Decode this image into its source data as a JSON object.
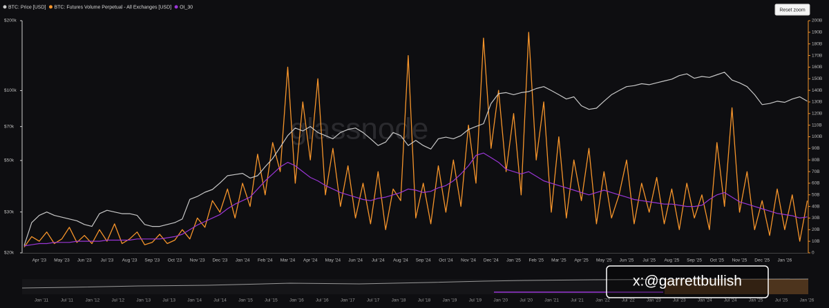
{
  "chart_data": {
    "type": "line",
    "log_y": true,
    "legend": "top-left",
    "watermark": "glassnode",
    "reset_button": "Reset zoom",
    "overlay_text": "x:@garrettbullish",
    "categories": [
      null,
      null,
      "Apr '23",
      null,
      null,
      "May '23",
      null,
      null,
      "Jun '23",
      null,
      null,
      "Jul '23",
      null,
      null,
      "Aug '23",
      null,
      null,
      "Sep '23",
      null,
      null,
      "Oct '23",
      null,
      null,
      "Nov '23",
      null,
      null,
      "Dec '23",
      null,
      null,
      "Jan '24",
      null,
      null,
      "Feb '24",
      null,
      null,
      "Mar '24",
      null,
      null,
      "Apr '24",
      null,
      null,
      "May '24",
      null,
      null,
      "Jun '24",
      null,
      null,
      "Jul '24",
      null,
      null,
      "Aug '24",
      null,
      null,
      "Sep '24",
      null,
      null,
      "Oct '24",
      null,
      null,
      "Nov '24",
      null,
      null,
      "Dec '24",
      null,
      null,
      "Jan '25",
      null,
      null,
      "Feb '25",
      null,
      null,
      "Mar '25",
      null,
      null,
      "Apr '25",
      null,
      null,
      "May '25",
      null,
      null,
      "Jun '25",
      null,
      null,
      "Jul '25",
      null,
      null,
      "Aug '25",
      null,
      null,
      "Sep '25",
      null,
      null,
      "Oct '25",
      null,
      null,
      "Nov '25",
      null,
      null,
      "Dec '25",
      null,
      null,
      "Jan '26",
      null,
      null,
      null
    ],
    "ylim": [
      20000,
      200000
    ],
    "yticks": [
      {
        "value": 20000,
        "label": "$20k"
      },
      {
        "value": 30000,
        "label": "$30k"
      },
      {
        "value": 50000,
        "label": "$50k"
      },
      {
        "value": 70000,
        "label": "$70k"
      },
      {
        "value": 100000,
        "label": "$100k"
      },
      {
        "value": 200000,
        "label": "$200k"
      }
    ],
    "y2lim": [
      0,
      200
    ],
    "y2ticks": [
      0,
      {
        "value": 10,
        "label": "10B"
      },
      {
        "value": 20,
        "label": "20B"
      },
      {
        "value": 30,
        "label": "30B"
      },
      {
        "value": 40,
        "label": "40B"
      },
      {
        "value": 50,
        "label": "50B"
      },
      {
        "value": 60,
        "label": "60B"
      },
      {
        "value": 70,
        "label": "70B"
      },
      {
        "value": 80,
        "label": "80B"
      },
      {
        "value": 90,
        "label": "90B"
      },
      {
        "value": 100,
        "label": "100B"
      },
      {
        "value": 110,
        "label": "110B"
      },
      {
        "value": 120,
        "label": "120B"
      },
      {
        "value": 130,
        "label": "130B"
      },
      {
        "value": 140,
        "label": "140B"
      },
      {
        "value": 150,
        "label": "150B"
      },
      {
        "value": 160,
        "label": "160B"
      },
      {
        "value": 170,
        "label": "170B"
      },
      {
        "value": 180,
        "label": "180B"
      },
      {
        "value": 190,
        "label": "190B"
      },
      {
        "value": 200,
        "label": "200B"
      }
    ],
    "series": [
      {
        "name": "BTC: Price [USD]",
        "color": "#c9c9c9",
        "values": [
          21500,
          27000,
          29000,
          30000,
          29000,
          28500,
          28000,
          27500,
          26500,
          26000,
          29500,
          30500,
          30000,
          29500,
          29500,
          29000,
          26500,
          26000,
          26000,
          26500,
          27000,
          28000,
          34000,
          35000,
          36500,
          37500,
          40000,
          43000,
          43500,
          44000,
          42000,
          43000,
          47000,
          51000,
          57000,
          64000,
          69000,
          67000,
          70000,
          66000,
          64000,
          62000,
          66000,
          68000,
          69000,
          66000,
          62000,
          58000,
          60000,
          66000,
          64000,
          58000,
          61000,
          58000,
          56000,
          62000,
          63000,
          62000,
          64000,
          68000,
          70000,
          72000,
          88000,
          97000,
          98000,
          96000,
          98000,
          99000,
          102000,
          104000,
          100000,
          96000,
          92000,
          94000,
          86000,
          83000,
          84000,
          90000,
          96000,
          100000,
          104000,
          105000,
          107000,
          106000,
          108000,
          110000,
          112000,
          116000,
          118000,
          113000,
          115000,
          114000,
          117000,
          120000,
          111000,
          108000,
          104000,
          96000,
          87000,
          88000,
          90000,
          89000,
          92000,
          94000,
          90000
        ]
      },
      {
        "name": "BTC: Futures Volume Perpetual - All Exchanges [USD]",
        "color": "#f7952b",
        "axis": "y2",
        "values": [
          5,
          14,
          10,
          18,
          8,
          12,
          22,
          9,
          15,
          8,
          20,
          10,
          25,
          8,
          12,
          18,
          7,
          9,
          16,
          8,
          11,
          20,
          12,
          30,
          22,
          45,
          35,
          55,
          30,
          60,
          40,
          85,
          50,
          95,
          70,
          160,
          60,
          130,
          80,
          150,
          50,
          90,
          40,
          75,
          30,
          60,
          25,
          70,
          20,
          55,
          45,
          170,
          30,
          60,
          25,
          75,
          35,
          80,
          40,
          110,
          60,
          185,
          90,
          140,
          70,
          120,
          50,
          190,
          80,
          130,
          35,
          100,
          30,
          80,
          45,
          90,
          25,
          70,
          30,
          50,
          80,
          25,
          60,
          35,
          65,
          25,
          55,
          20,
          60,
          30,
          50,
          20,
          95,
          40,
          125,
          35,
          70,
          20,
          45,
          15,
          55,
          20,
          50,
          10,
          45
        ]
      },
      {
        "name": "OI_30",
        "color": "#9a36d6",
        "axis": "y2",
        "values": [
          6,
          7,
          8,
          8,
          9,
          9,
          9,
          10,
          10,
          10,
          10,
          11,
          11,
          11,
          11,
          12,
          12,
          12,
          12,
          13,
          14,
          16,
          20,
          24,
          27,
          30,
          33,
          38,
          42,
          45,
          48,
          55,
          62,
          68,
          74,
          78,
          75,
          70,
          65,
          62,
          58,
          55,
          52,
          50,
          48,
          46,
          45,
          47,
          48,
          50,
          52,
          55,
          54,
          52,
          53,
          56,
          58,
          62,
          68,
          75,
          84,
          86,
          82,
          78,
          72,
          70,
          68,
          70,
          66,
          62,
          60,
          58,
          56,
          54,
          52,
          50,
          52,
          54,
          52,
          50,
          48,
          46,
          45,
          44,
          43,
          42,
          42,
          41,
          40,
          40,
          41,
          46,
          50,
          52,
          48,
          44,
          42,
          40,
          38,
          36,
          34,
          33,
          32,
          30,
          31
        ]
      }
    ],
    "navigator_labels": [
      "Jan '11",
      "Jul '11",
      "Jan '12",
      "Jul '12",
      "Jan '13",
      "Jul '13",
      "Jan '14",
      "Jul '14",
      "Jan '15",
      "Jul '15",
      "Jan '16",
      "Jul '16",
      "Jan '17",
      "Jul '17",
      "Jan '18",
      "Jul '18",
      "Jan '19",
      "Jul '19",
      "Jan '20",
      "Jul '20",
      "Jan '21",
      "Jul '21",
      "Jan '22",
      "Jul '22",
      "Jan '23",
      "Jul '23",
      "Jan '24",
      "Jul '24",
      "Jan '25",
      "Jul '25",
      "Jan '26"
    ]
  }
}
